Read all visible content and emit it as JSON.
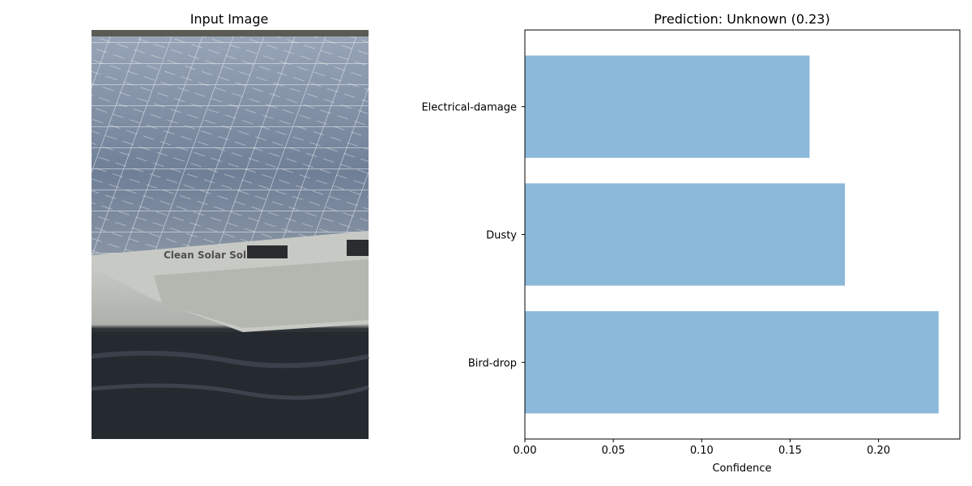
{
  "left_panel": {
    "title": "Input Image",
    "photo": {
      "icon": "solar-panel-photo",
      "overlay_text": "Clean Solar Sol"
    }
  },
  "chart_data": {
    "type": "bar",
    "orientation": "horizontal",
    "title": "Prediction: Unknown (0.23)",
    "xlabel": "Confidence",
    "ylabel": "",
    "categories": [
      "Bird-drop",
      "Dusty",
      "Electrical-damage"
    ],
    "values": [
      0.234,
      0.181,
      0.161
    ],
    "xlim": [
      0,
      0.246
    ],
    "xticks": [
      "0.00",
      "0.05",
      "0.10",
      "0.15",
      "0.20"
    ],
    "xtick_values": [
      0,
      0.05,
      0.1,
      0.15,
      0.2
    ],
    "bar_color": "#8cb8d9",
    "grid": false
  }
}
